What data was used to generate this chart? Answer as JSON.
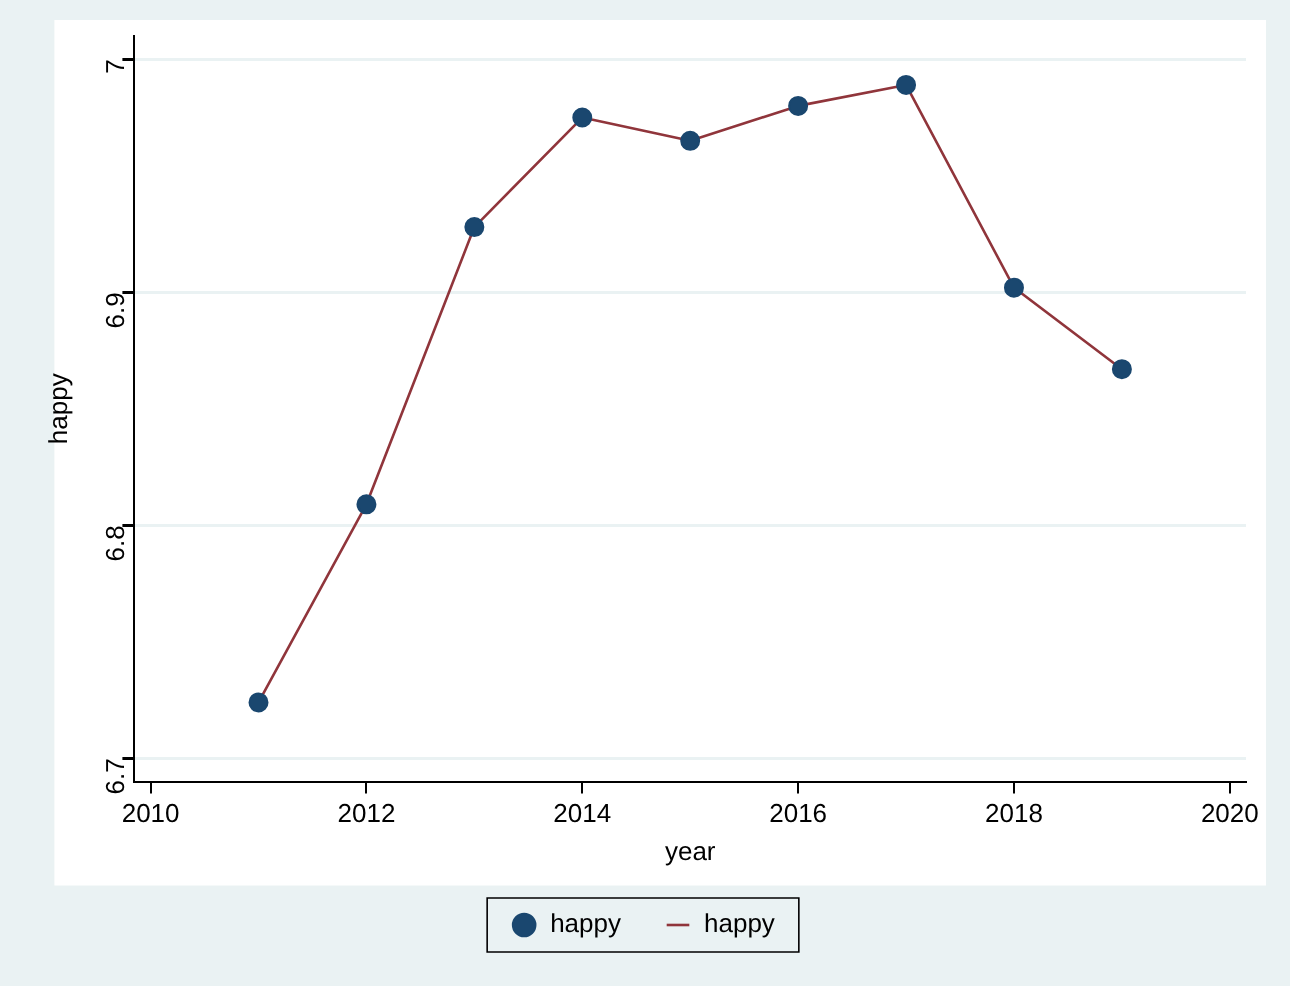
{
  "chart_data": {
    "type": "line",
    "xlabel": "year",
    "ylabel": "happy",
    "x": [
      2011,
      2012,
      2013,
      2014,
      2015,
      2016,
      2017,
      2018,
      2019
    ],
    "series": [
      {
        "name": "happy",
        "type": "scatter",
        "marker": "circle",
        "color": "#1a476f",
        "values": [
          6.724,
          6.809,
          6.928,
          6.975,
          6.965,
          6.98,
          6.989,
          6.902,
          6.867
        ]
      },
      {
        "name": "happy",
        "type": "line",
        "marker": "none",
        "line_style": "solid",
        "color": "#90353b",
        "values": [
          6.724,
          6.809,
          6.928,
          6.975,
          6.965,
          6.98,
          6.989,
          6.902,
          6.867
        ]
      }
    ],
    "xlim": [
      2009.85,
      2020.15
    ],
    "xticks": [
      2010,
      2012,
      2014,
      2016,
      2018,
      2020
    ],
    "ylim": [
      6.69,
      7.01
    ],
    "yticks": [
      6.7,
      6.8,
      6.9,
      7
    ],
    "grid": "y",
    "legend": "bottom"
  }
}
